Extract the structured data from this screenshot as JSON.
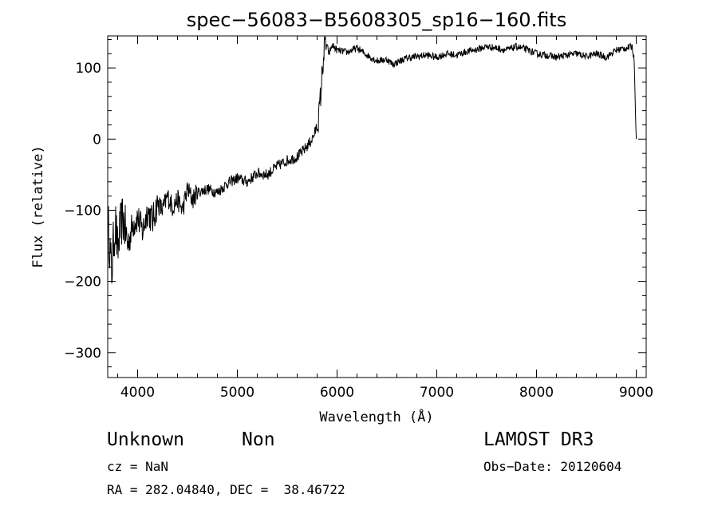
{
  "chart_data": {
    "type": "line",
    "title": "spec−56083−B5608305_sp16−160.fits",
    "xlabel": "Wavelength (Å)",
    "ylabel": "Flux (relative)",
    "xlim": [
      3700,
      9100
    ],
    "ylim": [
      -335,
      145
    ],
    "xticks": [
      4000,
      5000,
      6000,
      7000,
      8000,
      9000
    ],
    "xtick_labels": [
      "4000",
      "5000",
      "6000",
      "7000",
      "8000",
      "9000"
    ],
    "yticks": [
      100,
      0,
      -100,
      -200,
      -300
    ],
    "ytick_labels": [
      "100",
      "0",
      "−100",
      "−200",
      "−300"
    ],
    "grid": false,
    "series": [
      {
        "name": "",
        "x": [
          3700,
          3720,
          3740,
          3760,
          3780,
          3800,
          3820,
          3850,
          3880,
          3900,
          3950,
          4000,
          4050,
          4100,
          4150,
          4200,
          4250,
          4300,
          4350,
          4400,
          4450,
          4500,
          4550,
          4600,
          4700,
          4800,
          4900,
          5000,
          5100,
          5200,
          5300,
          5400,
          5500,
          5600,
          5650,
          5700,
          5750,
          5780,
          5800,
          5820,
          5840,
          5860,
          5880,
          5900,
          5920,
          5950,
          6000,
          6100,
          6200,
          6300,
          6400,
          6500,
          6560,
          6600,
          6700,
          6800,
          6900,
          7000,
          7100,
          7200,
          7300,
          7400,
          7500,
          7600,
          7700,
          7800,
          7900,
          8000,
          8100,
          8200,
          8300,
          8400,
          8500,
          8600,
          8700,
          8800,
          8900,
          8960,
          8980,
          9000
        ],
        "y": [
          -110,
          -150,
          -190,
          -140,
          -120,
          -160,
          -130,
          -110,
          -130,
          -150,
          -120,
          -110,
          -130,
          -100,
          -115,
          -90,
          -100,
          -80,
          -95,
          -85,
          -100,
          -70,
          -85,
          -75,
          -70,
          -75,
          -62,
          -55,
          -60,
          -48,
          -50,
          -38,
          -30,
          -25,
          -18,
          -10,
          0,
          10,
          20,
          35,
          70,
          110,
          135,
          130,
          120,
          132,
          125,
          122,
          128,
          118,
          110,
          112,
          105,
          108,
          114,
          116,
          118,
          115,
          120,
          118,
          123,
          126,
          130,
          128,
          125,
          130,
          126,
          120,
          118,
          115,
          118,
          120,
          116,
          120,
          115,
          125,
          128,
          130,
          110,
          0
        ]
      }
    ]
  },
  "info": {
    "object_class": "Unknown",
    "object_subclass": "Non",
    "survey": "LAMOST DR3",
    "cz": "cz = NaN",
    "obs_date": "Obs−Date: 20120604",
    "coords": "RA = 282.04840, DEC =  38.46722"
  }
}
